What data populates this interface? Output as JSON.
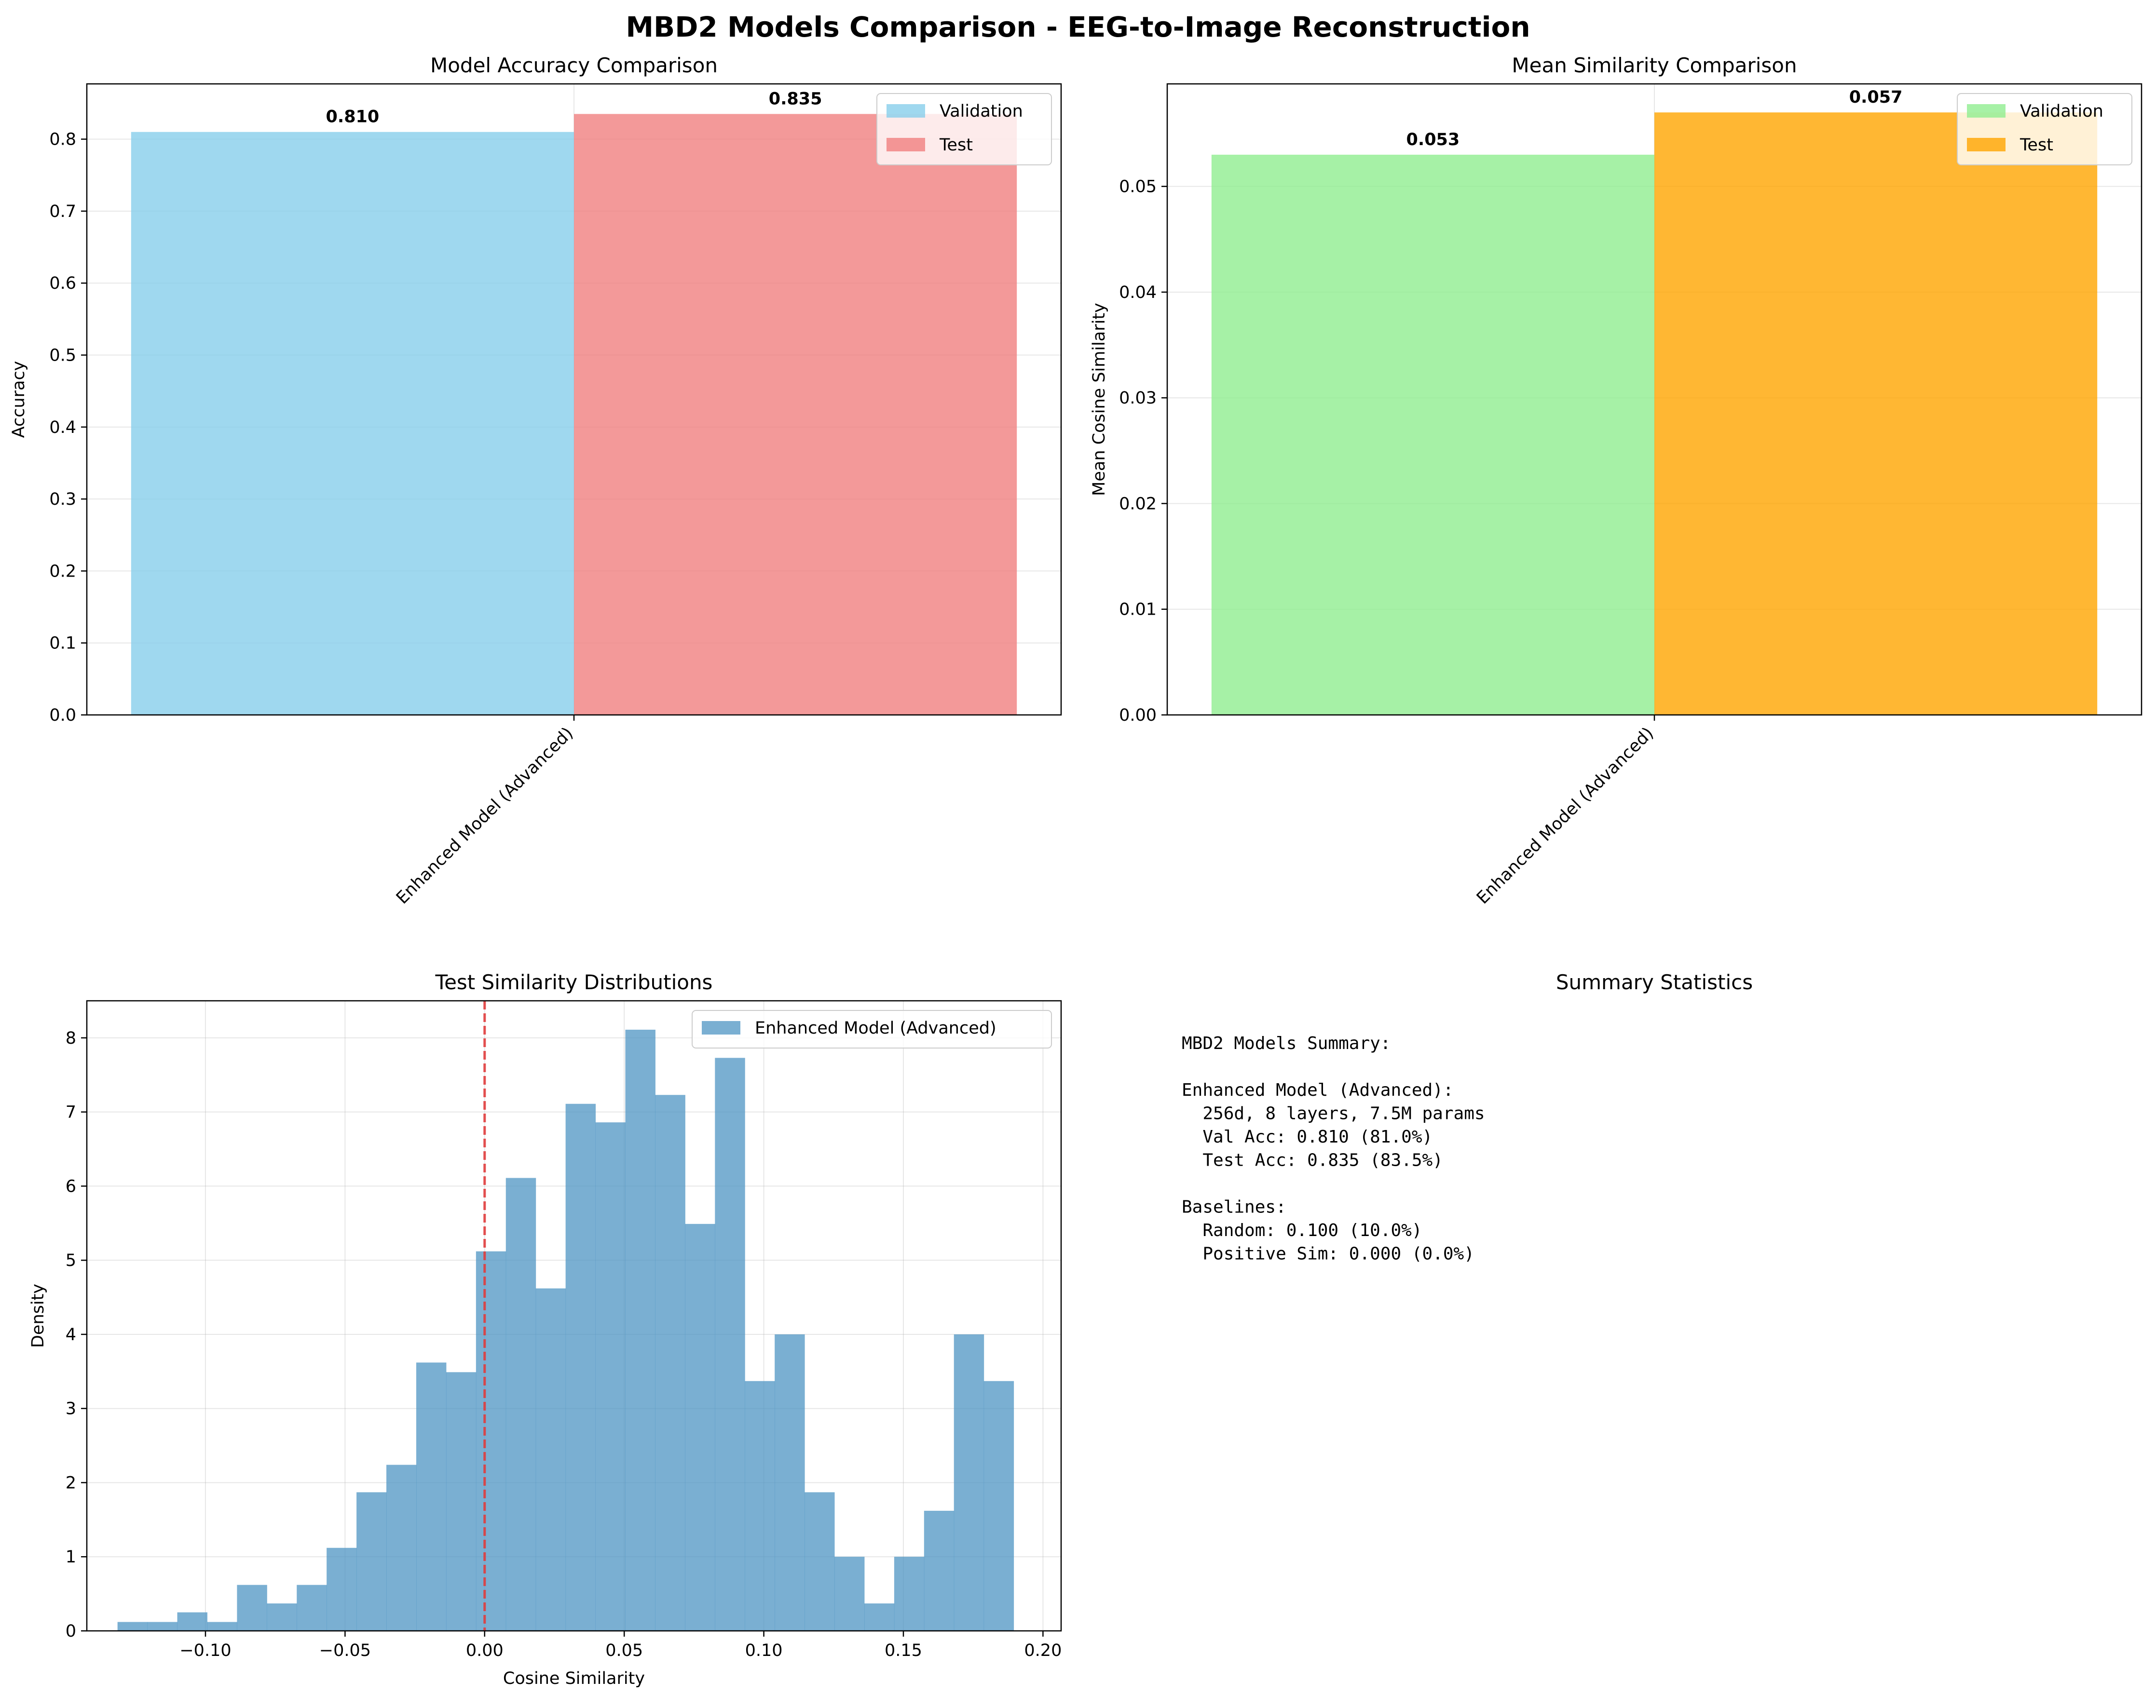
{
  "figure": {
    "suptitle": "MBD2 Models Comparison - EEG-to-Image Reconstruction"
  },
  "chart_data": [
    {
      "type": "bar",
      "title": "Model Accuracy Comparison",
      "xlabel": "",
      "ylabel": "Accuracy",
      "categories": [
        "Enhanced Model (Advanced)"
      ],
      "ylim": [
        0,
        0.8768
      ],
      "yticks": [
        "0.0",
        "0.1",
        "0.2",
        "0.3",
        "0.4",
        "0.5",
        "0.6",
        "0.7",
        "0.8"
      ],
      "grid": true,
      "legend_position": "upper right",
      "series": [
        {
          "name": "Validation",
          "values": [
            0.81
          ],
          "label": "0.810",
          "color": "#87ceeb"
        },
        {
          "name": "Test",
          "values": [
            0.835
          ],
          "label": "0.835",
          "color": "#f08080"
        }
      ]
    },
    {
      "type": "bar",
      "title": "Mean Similarity Comparison",
      "xlabel": "",
      "ylabel": "Mean Cosine Similarity",
      "categories": [
        "Enhanced Model (Advanced)"
      ],
      "ylim": [
        0,
        0.0597
      ],
      "yticks": [
        "0.00",
        "0.01",
        "0.02",
        "0.03",
        "0.04",
        "0.05"
      ],
      "grid": true,
      "legend_position": "upper right",
      "series": [
        {
          "name": "Validation",
          "values": [
            0.053
          ],
          "label": "0.053",
          "color": "#90ee90"
        },
        {
          "name": "Test",
          "values": [
            0.057
          ],
          "label": "0.057",
          "color": "#ffa500"
        }
      ]
    },
    {
      "type": "histogram",
      "title": "Test Similarity Distributions",
      "xlabel": "Cosine Similarity",
      "ylabel": "Density",
      "xlim": [
        -0.1425,
        0.2065
      ],
      "ylim": [
        0,
        8.5
      ],
      "xticks": [
        "−0.10",
        "−0.05",
        "0.00",
        "0.05",
        "0.10",
        "0.15",
        "0.20"
      ],
      "yticks": [
        "0",
        "1",
        "2",
        "3",
        "4",
        "5",
        "6",
        "7",
        "8"
      ],
      "grid": true,
      "legend_position": "upper right",
      "reference_line_x": 0.0,
      "reference_line_color": "#e03c3c",
      "series": [
        {
          "name": "Enhanced Model (Advanced)",
          "color": "#4d94c3",
          "bin_start": -0.1315,
          "bin_width": 0.0107,
          "density": [
            0.12,
            0.12,
            0.25,
            0.12,
            0.62,
            0.37,
            0.62,
            1.12,
            1.87,
            2.24,
            3.62,
            3.49,
            5.12,
            6.11,
            4.62,
            7.11,
            6.86,
            8.11,
            7.23,
            5.49,
            7.73,
            3.37,
            4.0,
            1.87,
            1.0,
            0.37,
            1.0,
            1.62,
            4.0,
            3.37
          ]
        }
      ]
    },
    {
      "type": "table",
      "title": "Summary Statistics",
      "lines": [
        "MBD2 Models Summary:",
        "",
        "Enhanced Model (Advanced):",
        "  256d, 8 layers, 7.5M params",
        "  Val Acc: 0.810 (81.0%)",
        "  Test Acc: 0.835 (83.5%)",
        "",
        "Baselines:",
        "  Random: 0.100 (10.0%)",
        "  Positive Sim: 0.000 (0.0%)"
      ]
    }
  ]
}
